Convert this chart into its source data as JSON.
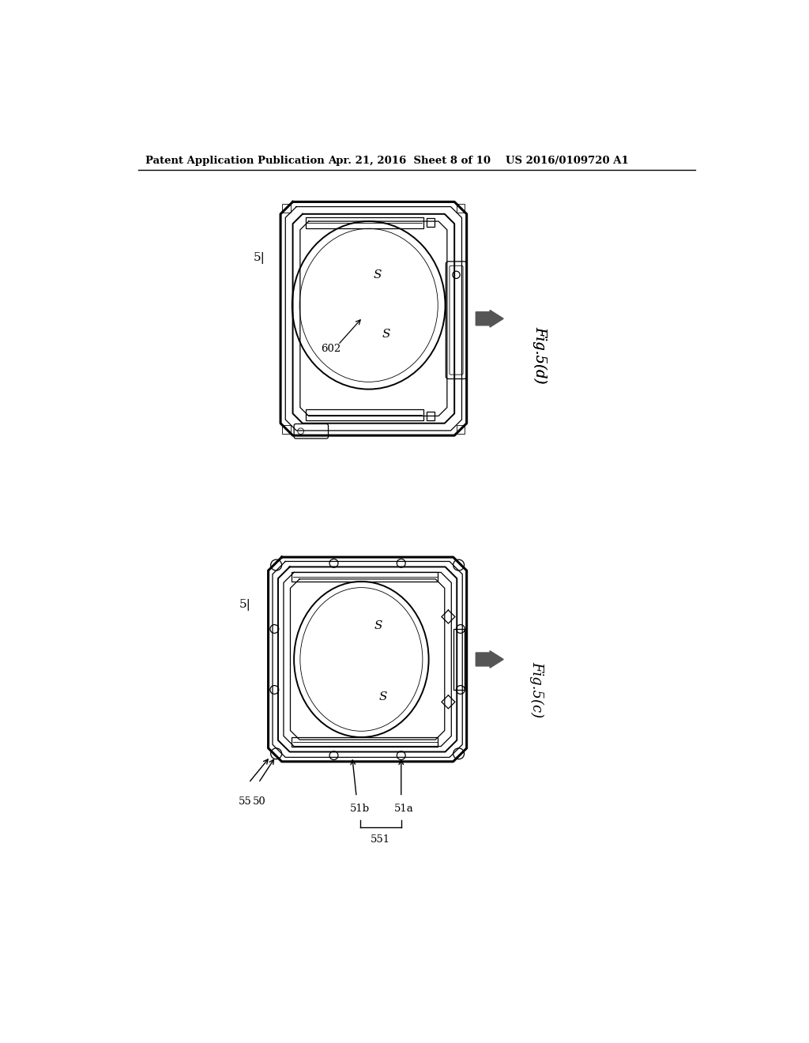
{
  "background_color": "#ffffff",
  "header_left": "Patent Application Publication",
  "header_center": "Apr. 21, 2016  Sheet 8 of 10",
  "header_right": "US 2016/0109720 A1",
  "fig5d_label": "Fig.5(d)",
  "fig5c_label": "Fig.5(c)"
}
